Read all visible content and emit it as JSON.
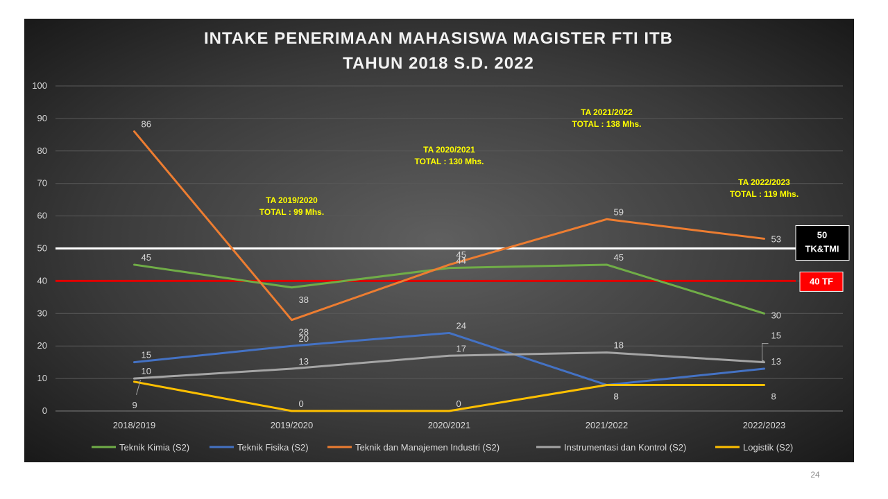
{
  "slide": {
    "page_number": "24"
  },
  "chart_data": {
    "type": "line",
    "title": "INTAKE PENERIMAAN MAHASISWA MAGISTER FTI ITB",
    "subtitle": "TAHUN 2018 S.D. 2022",
    "categories": [
      "2018/2019",
      "2019/2020",
      "2020/2021",
      "2021/2022",
      "2022/2023"
    ],
    "ylim": [
      0,
      100
    ],
    "yticks": [
      0,
      10,
      20,
      30,
      40,
      50,
      60,
      70,
      80,
      90,
      100
    ],
    "grid": true,
    "legend_position": "bottom",
    "series": [
      {
        "name": "Teknik Kimia (S2)",
        "color": "#70ad47",
        "values": [
          45,
          38,
          44,
          45,
          30
        ]
      },
      {
        "name": "Teknik Fisika (S2)",
        "color": "#4472c4",
        "values": [
          15,
          20,
          24,
          8,
          13
        ]
      },
      {
        "name": "Teknik dan Manajemen Industri (S2)",
        "color": "#ed7d31",
        "values": [
          86,
          28,
          45,
          59,
          53
        ]
      },
      {
        "name": "Instrumentasi dan Kontrol (S2)",
        "color": "#a5a5a5",
        "values": [
          10,
          13,
          17,
          18,
          15
        ]
      },
      {
        "name": "Logistik (S2)",
        "color": "#ffc000",
        "values": [
          9,
          0,
          0,
          8,
          8
        ]
      }
    ],
    "reference_lines": [
      {
        "value": 50,
        "color": "#ffffff",
        "label_line1": "50",
        "label_line2": "TK&TMI",
        "label_bg": "#000000"
      },
      {
        "value": 40,
        "color": "#e00000",
        "label_line1": "40 TF",
        "label_line2": "",
        "label_bg": "#ff0000"
      }
    ],
    "annotations": [
      {
        "line1": "TA 2019/2020",
        "line2": "TOTAL : 99 Mhs.",
        "x_category": 1,
        "y": 64
      },
      {
        "line1": "TA 2020/2021",
        "line2": "TOTAL : 130 Mhs.",
        "x_category": 2,
        "y": 79.5
      },
      {
        "line1": "TA 2021/2022",
        "line2": "TOTAL : 138 Mhs.",
        "x_category": 3,
        "y": 91
      },
      {
        "line1": "TA 2022/2023",
        "line2": "TOTAL : 119 Mhs.",
        "x_category": 4,
        "y": 69.5
      }
    ],
    "annotation_color": "#ffff00"
  }
}
